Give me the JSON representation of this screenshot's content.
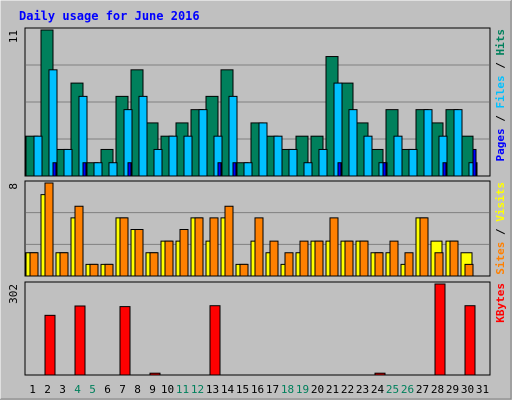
{
  "chart_data": [
    {
      "type": "bar",
      "title": "Daily usage for June 2016",
      "ymax_label": "11",
      "ylim": [
        0,
        11
      ],
      "legend_labels": [
        "Pages",
        "Files",
        "Hits"
      ],
      "legend_separator": " / ",
      "categories": [
        "1",
        "2",
        "3",
        "4",
        "5",
        "6",
        "7",
        "8",
        "9",
        "10",
        "11",
        "12",
        "13",
        "14",
        "15",
        "16",
        "17",
        "18",
        "19",
        "20",
        "21",
        "22",
        "23",
        "24",
        "25",
        "26",
        "27",
        "28",
        "29",
        "30",
        "31"
      ],
      "series": [
        {
          "name": "Hits",
          "color": "#00805c",
          "values": [
            3,
            11,
            2,
            7,
            1,
            2,
            6,
            8,
            4,
            3,
            4,
            5,
            6,
            8,
            1,
            4,
            3,
            2,
            3,
            3,
            9,
            7,
            4,
            2,
            5,
            2,
            5,
            4,
            5,
            3,
            0
          ]
        },
        {
          "name": "Files",
          "color": "#00c0ff",
          "values": [
            3,
            8,
            2,
            6,
            1,
            1,
            5,
            6,
            2,
            3,
            3,
            5,
            3,
            6,
            1,
            4,
            3,
            2,
            1,
            2,
            7,
            5,
            3,
            1,
            3,
            2,
            5,
            3,
            5,
            1,
            0
          ]
        },
        {
          "name": "Pages",
          "color": "#0000ff",
          "values": [
            0,
            1,
            0,
            1,
            0,
            0,
            1,
            0,
            0,
            0,
            0,
            0,
            1,
            1,
            0,
            0,
            0,
            0,
            0,
            0,
            1,
            0,
            0,
            1,
            0,
            0,
            0,
            1,
            0,
            2,
            0
          ]
        }
      ]
    },
    {
      "type": "bar",
      "ymax_label": "8",
      "ylim": [
        0,
        8
      ],
      "legend_labels": [
        "Sites",
        "Visits"
      ],
      "legend_separator": " / ",
      "categories": [
        "1",
        "2",
        "3",
        "4",
        "5",
        "6",
        "7",
        "8",
        "9",
        "10",
        "11",
        "12",
        "13",
        "14",
        "15",
        "16",
        "17",
        "18",
        "19",
        "20",
        "21",
        "22",
        "23",
        "24",
        "25",
        "26",
        "27",
        "28",
        "29",
        "30",
        "31"
      ],
      "series": [
        {
          "name": "Visits",
          "color": "#ffff00",
          "values": [
            2,
            7,
            2,
            5,
            1,
            1,
            5,
            4,
            2,
            3,
            3,
            5,
            3,
            5,
            1,
            3,
            2,
            1,
            2,
            3,
            3,
            3,
            3,
            2,
            2,
            1,
            5,
            3,
            3,
            2,
            0
          ]
        },
        {
          "name": "Sites",
          "color": "#ff8000",
          "values": [
            2,
            8,
            2,
            6,
            1,
            1,
            5,
            4,
            2,
            3,
            4,
            5,
            5,
            6,
            1,
            5,
            3,
            2,
            3,
            3,
            5,
            3,
            3,
            2,
            3,
            2,
            5,
            2,
            3,
            1,
            0
          ]
        }
      ]
    },
    {
      "type": "bar",
      "ymax_label": "302",
      "ylim": [
        0,
        302
      ],
      "legend_labels": [
        "KBytes"
      ],
      "legend_separator": " / ",
      "categories": [
        "1",
        "2",
        "3",
        "4",
        "5",
        "6",
        "7",
        "8",
        "9",
        "10",
        "11",
        "12",
        "13",
        "14",
        "15",
        "16",
        "17",
        "18",
        "19",
        "20",
        "21",
        "22",
        "23",
        "24",
        "25",
        "26",
        "27",
        "28",
        "29",
        "30",
        "31"
      ],
      "series": [
        {
          "name": "KBytes",
          "color": "#ff0000",
          "values": [
            0,
            198,
            0,
            229,
            0,
            0,
            227,
            0,
            6,
            0,
            0,
            0,
            230,
            0,
            0,
            0,
            0,
            0,
            0,
            0,
            0,
            0,
            0,
            6,
            0,
            0,
            0,
            302,
            0,
            230,
            0
          ]
        }
      ]
    }
  ],
  "x_labels": [
    "1",
    "2",
    "3",
    "4",
    "5",
    "6",
    "7",
    "8",
    "9",
    "10",
    "11",
    "12",
    "13",
    "14",
    "15",
    "16",
    "17",
    "18",
    "19",
    "20",
    "21",
    "22",
    "23",
    "24",
    "25",
    "26",
    "27",
    "28",
    "29",
    "30",
    "31"
  ],
  "weekend_days": [
    4,
    5,
    11,
    12,
    18,
    19,
    25,
    26
  ],
  "colors": {
    "background": "#c0c0c0",
    "title": "#0000ff",
    "weekday_label": "#000000",
    "weekend_label": "#00805c",
    "grid": "#808080",
    "bar_outline": "#000000"
  }
}
